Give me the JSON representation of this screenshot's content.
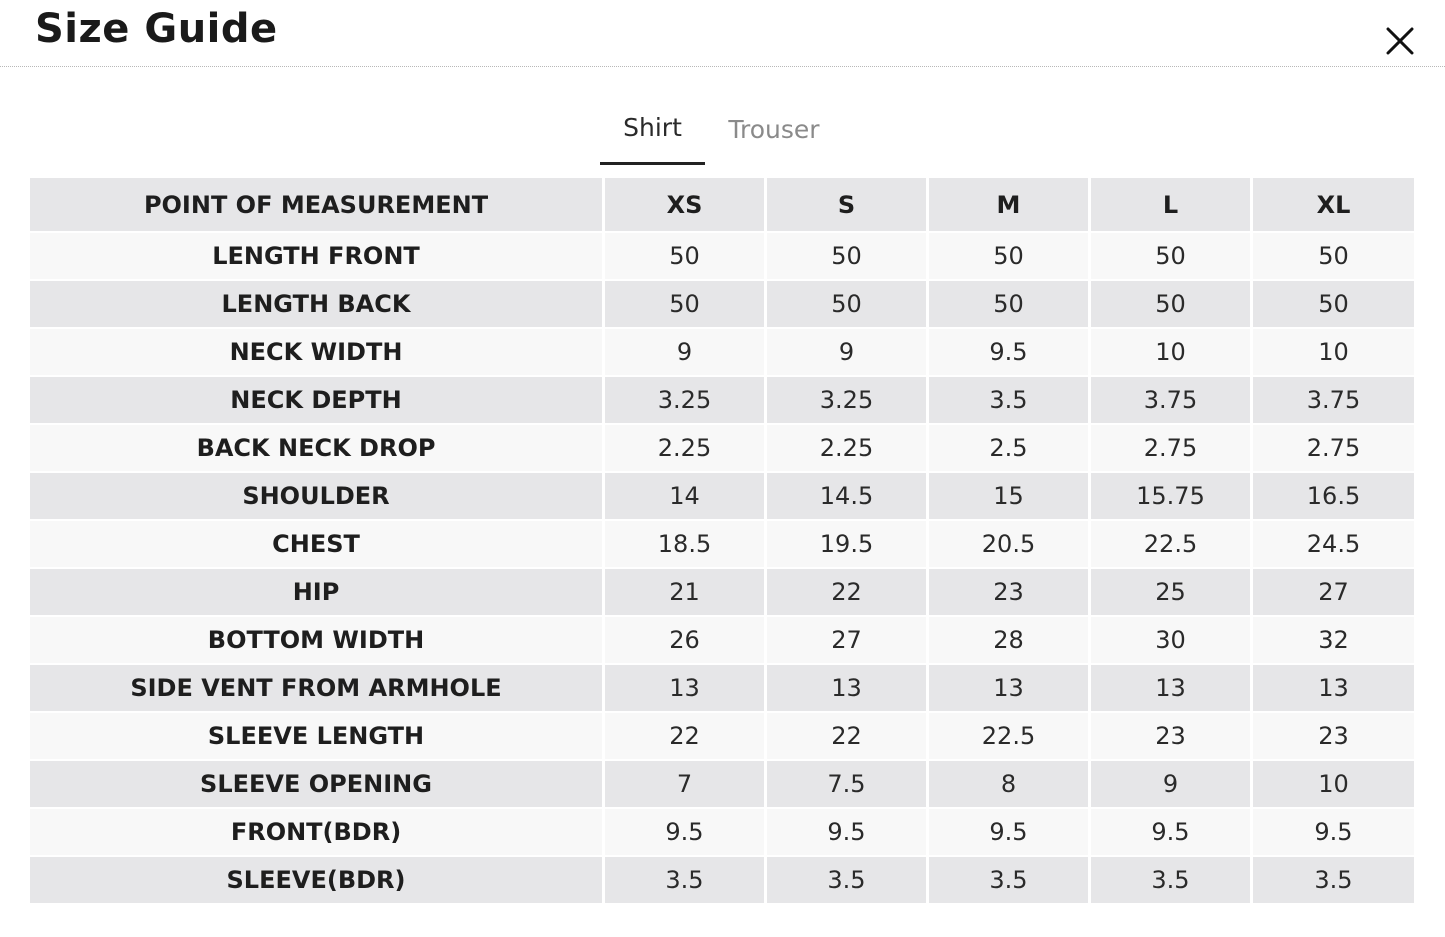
{
  "modal": {
    "title": "Size Guide",
    "close_icon": "close-icon"
  },
  "tabs": [
    {
      "label": "Shirt",
      "active": true
    },
    {
      "label": "Trouser",
      "active": false
    }
  ],
  "table": {
    "headers": [
      "POINT OF MEASUREMENT",
      "XS",
      "S",
      "M",
      "L",
      "XL"
    ],
    "rows": [
      {
        "label": "LENGTH FRONT",
        "values": [
          "50",
          "50",
          "50",
          "50",
          "50"
        ]
      },
      {
        "label": "LENGTH BACK",
        "values": [
          "50",
          "50",
          "50",
          "50",
          "50"
        ]
      },
      {
        "label": "NECK WIDTH",
        "values": [
          "9",
          "9",
          "9.5",
          "10",
          "10"
        ]
      },
      {
        "label": "NECK DEPTH",
        "values": [
          "3.25",
          "3.25",
          "3.5",
          "3.75",
          "3.75"
        ]
      },
      {
        "label": "BACK NECK DROP",
        "values": [
          "2.25",
          "2.25",
          "2.5",
          "2.75",
          "2.75"
        ]
      },
      {
        "label": "SHOULDER",
        "values": [
          "14",
          "14.5",
          "15",
          "15.75",
          "16.5"
        ]
      },
      {
        "label": "CHEST",
        "values": [
          "18.5",
          "19.5",
          "20.5",
          "22.5",
          "24.5"
        ]
      },
      {
        "label": "HIP",
        "values": [
          "21",
          "22",
          "23",
          "25",
          "27"
        ]
      },
      {
        "label": "BOTTOM WIDTH",
        "values": [
          "26",
          "27",
          "28",
          "30",
          "32"
        ]
      },
      {
        "label": "SIDE VENT FROM ARMHOLE",
        "values": [
          "13",
          "13",
          "13",
          "13",
          "13"
        ]
      },
      {
        "label": "SLEEVE LENGTH",
        "values": [
          "22",
          "22",
          "22.5",
          "23",
          "23"
        ]
      },
      {
        "label": "SLEEVE OPENING",
        "values": [
          "7",
          "7.5",
          "8",
          "9",
          "10"
        ]
      },
      {
        "label": "FRONT(BDR)",
        "values": [
          "9.5",
          "9.5",
          "9.5",
          "9.5",
          "9.5"
        ]
      },
      {
        "label": "SLEEVE(BDR)",
        "values": [
          "3.5",
          "3.5",
          "3.5",
          "3.5",
          "3.5"
        ]
      }
    ]
  },
  "colors": {
    "header_row_bg": "#e6e6e8",
    "stripe_light": "#f8f8f8",
    "stripe_dark": "#e6e6e8",
    "active_tab_underline": "#222222",
    "inactive_tab_text": "#8a8a8a"
  }
}
